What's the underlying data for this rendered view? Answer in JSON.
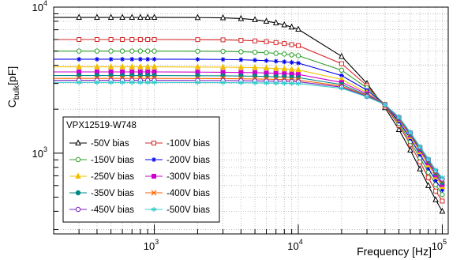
{
  "chart_data": {
    "type": "line",
    "title": "",
    "xlabel": "Frequency [Hz]",
    "ylabel": "C",
    "ylabel_sub": "bulk",
    "ylabel_unit": "[pF]",
    "xscale": "log",
    "yscale": "log",
    "xlim": [
      200,
      110000
    ],
    "ylim": [
      280,
      10000
    ],
    "grid": true,
    "legend_title": "VPX12519-W748",
    "legend_position": "bottom-left",
    "x_tick_labels": [
      {
        "base": "10",
        "exp": "3",
        "value": 1000
      },
      {
        "base": "10",
        "exp": "4",
        "value": 10000
      },
      {
        "base": "10",
        "exp": "5",
        "value": 100000
      }
    ],
    "y_tick_labels": [
      {
        "base": "10",
        "exp": "3",
        "value": 1000
      },
      {
        "base": "10",
        "exp": "4",
        "value": 10000
      }
    ],
    "x": [
      200,
      300,
      400,
      500,
      600,
      700,
      800,
      900,
      1000,
      2000,
      3000,
      4000,
      5000,
      6000,
      7000,
      8000,
      9000,
      10000,
      20000,
      30000,
      40000,
      50000,
      60000,
      70000,
      80000,
      90000,
      100000
    ],
    "series": [
      {
        "name": "-50V bias",
        "color": "#000000",
        "marker": "triangle",
        "low": 400,
        "values": [
          8500,
          8500,
          8500,
          8500,
          8500,
          8500,
          8500,
          8500,
          8500,
          8480,
          8450,
          8350,
          8200,
          8000,
          7800,
          7550,
          7300,
          7050,
          4600,
          3000,
          2050,
          1450,
          1050,
          780,
          600,
          480,
          400
        ]
      },
      {
        "name": "-100V bias",
        "color": "#d62728",
        "marker": "open-square",
        "low": 470,
        "values": [
          6000,
          6000,
          6000,
          6000,
          6000,
          6000,
          6000,
          6000,
          6000,
          5990,
          5970,
          5930,
          5870,
          5800,
          5720,
          5630,
          5540,
          5450,
          4100,
          2900,
          2100,
          1550,
          1150,
          870,
          680,
          550,
          470
        ]
      },
      {
        "name": "-150V bias",
        "color": "#2ca02c",
        "marker": "open-circle",
        "low": 520,
        "values": [
          5000,
          5000,
          5000,
          5000,
          5000,
          5000,
          5000,
          5000,
          5000,
          4990,
          4980,
          4950,
          4910,
          4870,
          4820,
          4770,
          4710,
          4650,
          3700,
          2800,
          2150,
          1600,
          1200,
          930,
          740,
          610,
          520
        ]
      },
      {
        "name": "-200V bias",
        "color": "#0000ee",
        "marker": "star",
        "low": 560,
        "values": [
          4400,
          4400,
          4400,
          4400,
          4400,
          4400,
          4400,
          4400,
          4400,
          4390,
          4380,
          4360,
          4330,
          4300,
          4260,
          4220,
          4180,
          4140,
          3400,
          2700,
          2150,
          1650,
          1260,
          980,
          790,
          650,
          560
        ]
      },
      {
        "name": "-250V bias",
        "color": "#f0c000",
        "marker": "triangle",
        "low": 590,
        "values": [
          3900,
          3900,
          3900,
          3900,
          3900,
          3900,
          3900,
          3900,
          3900,
          3890,
          3880,
          3870,
          3850,
          3830,
          3800,
          3780,
          3750,
          3720,
          3200,
          2600,
          2150,
          1700,
          1300,
          1020,
          830,
          690,
          590
        ]
      },
      {
        "name": "-300V bias",
        "color": "#cc00cc",
        "marker": "filled-square",
        "low": 610,
        "values": [
          3600,
          3600,
          3600,
          3600,
          3600,
          3600,
          3600,
          3600,
          3600,
          3590,
          3580,
          3570,
          3560,
          3540,
          3520,
          3500,
          3480,
          3460,
          3050,
          2550,
          2150,
          1720,
          1330,
          1050,
          860,
          710,
          610
        ]
      },
      {
        "name": "-350V bias",
        "color": "#008888",
        "marker": "filled-circle",
        "low": 630,
        "values": [
          3400,
          3400,
          3400,
          3400,
          3400,
          3400,
          3400,
          3400,
          3400,
          3390,
          3385,
          3375,
          3365,
          3350,
          3335,
          3320,
          3305,
          3290,
          2950,
          2500,
          2150,
          1740,
          1350,
          1070,
          880,
          730,
          630
        ]
      },
      {
        "name": "-400V bias",
        "color": "#ff6600",
        "marker": "x",
        "low": 650,
        "values": [
          3250,
          3250,
          3250,
          3250,
          3250,
          3250,
          3250,
          3250,
          3250,
          3245,
          3240,
          3230,
          3220,
          3210,
          3200,
          3190,
          3180,
          3170,
          2880,
          2470,
          2150,
          1750,
          1370,
          1090,
          895,
          745,
          650
        ]
      },
      {
        "name": "-450V bias",
        "color": "#7a1fc2",
        "marker": "open-circle",
        "low": 665,
        "values": [
          3150,
          3150,
          3150,
          3150,
          3150,
          3150,
          3150,
          3150,
          3150,
          3145,
          3140,
          3132,
          3124,
          3116,
          3108,
          3100,
          3092,
          3085,
          2830,
          2450,
          2150,
          1760,
          1380,
          1100,
          905,
          755,
          665
        ]
      },
      {
        "name": "-500V bias",
        "color": "#33cccc",
        "marker": "asterisk",
        "low": 680,
        "values": [
          3050,
          3050,
          3050,
          3050,
          3050,
          3050,
          3050,
          3050,
          3050,
          3046,
          3042,
          3036,
          3030,
          3023,
          3016,
          3010,
          3003,
          2997,
          2780,
          2430,
          2150,
          1770,
          1390,
          1110,
          915,
          765,
          680
        ]
      }
    ]
  }
}
